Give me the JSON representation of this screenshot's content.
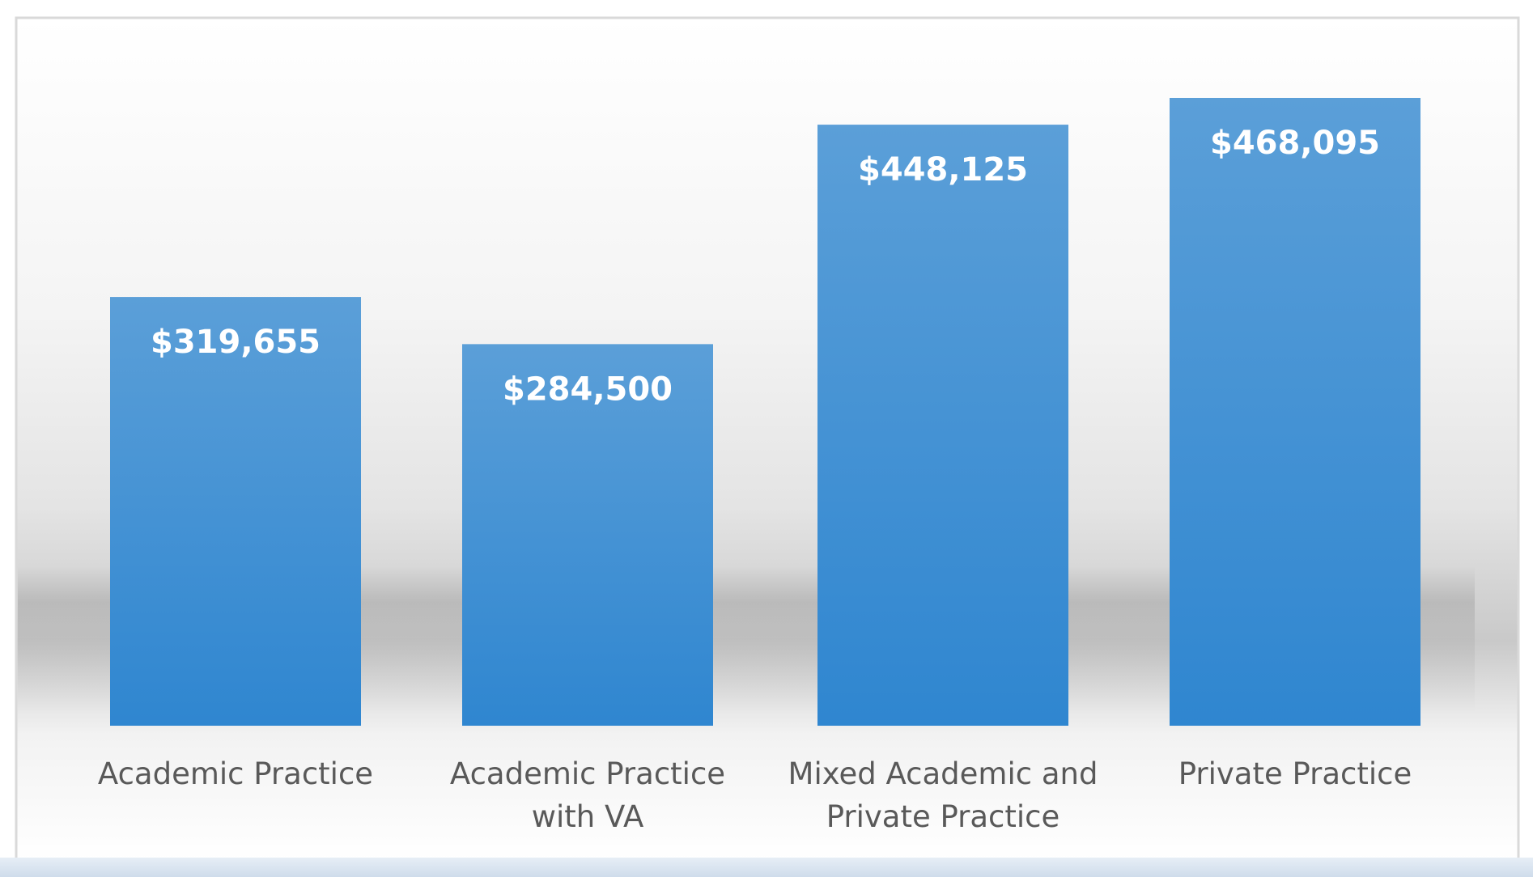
{
  "chart_data": {
    "type": "bar",
    "title": "",
    "xlabel": "",
    "ylabel": "",
    "categories": [
      [
        "Academic Practice"
      ],
      [
        "Academic Practice",
        "with VA"
      ],
      [
        "Mixed Academic and",
        "Private Practice"
      ],
      [
        "Private Practice"
      ]
    ],
    "values": [
      319655,
      284500,
      448125,
      468095
    ],
    "data_labels": [
      "$319,655",
      "$284,500",
      "$448,125",
      "$468,095"
    ],
    "ylim": [
      0,
      468095
    ],
    "grid": false,
    "legend": "none",
    "colors": {
      "bar_top": "#5b9fd8",
      "bar_bottom": "#2f86d0",
      "data_label": "#ffffff",
      "category_label": "#595959",
      "frame": "#d9d9d9"
    }
  }
}
